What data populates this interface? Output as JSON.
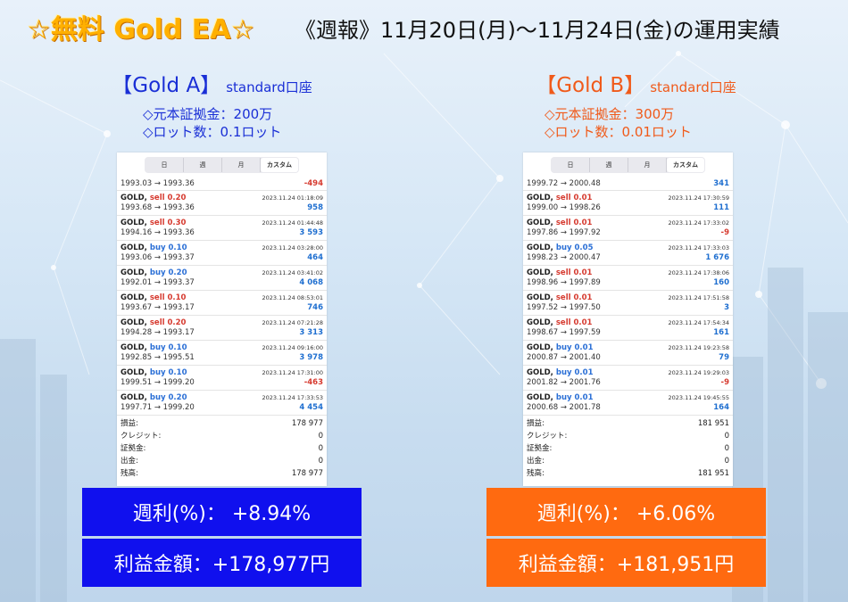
{
  "header": {
    "brand": "☆無料 Gold EA☆",
    "report": "《週報》11月20日(月)〜11月24日(金)の運用実績"
  },
  "tabs": [
    "日",
    "週",
    "月",
    "カスタム"
  ],
  "active_tab": "カスタム",
  "colors": {
    "blue": "#1010ee",
    "orange": "#ff6a10",
    "profit_text": "#1f6fd0",
    "loss_text": "#d63a2f"
  },
  "accounts": [
    {
      "name": "【Gold A】",
      "type": "standard口座",
      "deposit": "◇元本証拠金：200万",
      "lot": "◇ロット数：0.1ロット",
      "first_row": {
        "prices": "1993.03 → 1993.36",
        "pl": "-494"
      },
      "trades": [
        {
          "symbol": "GOLD,",
          "side": "sell 0.20",
          "dir": "sell",
          "datetime": "2023.11.24 01:18:09",
          "prices": "1993.68 → 1993.36",
          "pl": "958"
        },
        {
          "symbol": "GOLD,",
          "side": "sell 0.30",
          "dir": "sell",
          "datetime": "2023.11.24 01:44:48",
          "prices": "1994.16 → 1993.36",
          "pl": "3 593"
        },
        {
          "symbol": "GOLD,",
          "side": "buy 0.10",
          "dir": "buy",
          "datetime": "2023.11.24 03:28:00",
          "prices": "1993.06 → 1993.37",
          "pl": "464"
        },
        {
          "symbol": "GOLD,",
          "side": "buy 0.20",
          "dir": "buy",
          "datetime": "2023.11.24 03:41:02",
          "prices": "1992.01 → 1993.37",
          "pl": "4 068"
        },
        {
          "symbol": "GOLD,",
          "side": "sell 0.10",
          "dir": "sell",
          "datetime": "2023.11.24 08:53:01",
          "prices": "1993.67 → 1993.17",
          "pl": "746"
        },
        {
          "symbol": "GOLD,",
          "side": "sell 0.20",
          "dir": "sell",
          "datetime": "2023.11.24 07:21:28",
          "prices": "1994.28 → 1993.17",
          "pl": "3 313"
        },
        {
          "symbol": "GOLD,",
          "side": "buy 0.10",
          "dir": "buy",
          "datetime": "2023.11.24 09:16:00",
          "prices": "1992.85 → 1995.51",
          "pl": "3 978"
        },
        {
          "symbol": "GOLD,",
          "side": "buy 0.10",
          "dir": "buy",
          "datetime": "2023.11.24 17:31:00",
          "prices": "1999.51 → 1999.20",
          "pl": "-463"
        },
        {
          "symbol": "GOLD,",
          "side": "buy 0.20",
          "dir": "buy",
          "datetime": "2023.11.24 17:33:53",
          "prices": "1997.71 → 1999.20",
          "pl": "4 454"
        }
      ],
      "summary": [
        {
          "label": "損益:",
          "value": "178 977"
        },
        {
          "label": "クレジット:",
          "value": "0"
        },
        {
          "label": "証拠金:",
          "value": "0"
        },
        {
          "label": "出金:",
          "value": "0"
        },
        {
          "label": "残高:",
          "value": "178 977"
        }
      ],
      "weekly_rate": "週利(%)： +8.94%",
      "profit": "利益金額：+178,977円"
    },
    {
      "name": "【Gold B】",
      "type": "standard口座",
      "deposit": "◇元本証拠金：300万",
      "lot": "◇ロット数：0.01ロット",
      "first_row": {
        "prices": "1999.72 → 2000.48",
        "pl": "341"
      },
      "trades": [
        {
          "symbol": "GOLD,",
          "side": "sell 0.01",
          "dir": "sell",
          "datetime": "2023.11.24 17:30:59",
          "prices": "1999.00 → 1998.26",
          "pl": "111"
        },
        {
          "symbol": "GOLD,",
          "side": "sell 0.01",
          "dir": "sell",
          "datetime": "2023.11.24 17:33:02",
          "prices": "1997.86 → 1997.92",
          "pl": "-9"
        },
        {
          "symbol": "GOLD,",
          "side": "buy 0.05",
          "dir": "buy",
          "datetime": "2023.11.24 17:33:03",
          "prices": "1998.23 → 2000.47",
          "pl": "1 676"
        },
        {
          "symbol": "GOLD,",
          "side": "sell 0.01",
          "dir": "sell",
          "datetime": "2023.11.24 17:38:06",
          "prices": "1998.96 → 1997.89",
          "pl": "160"
        },
        {
          "symbol": "GOLD,",
          "side": "sell 0.01",
          "dir": "sell",
          "datetime": "2023.11.24 17:51:58",
          "prices": "1997.52 → 1997.50",
          "pl": "3"
        },
        {
          "symbol": "GOLD,",
          "side": "sell 0.01",
          "dir": "sell",
          "datetime": "2023.11.24 17:54:34",
          "prices": "1998.67 → 1997.59",
          "pl": "161"
        },
        {
          "symbol": "GOLD,",
          "side": "buy 0.01",
          "dir": "buy",
          "datetime": "2023.11.24 19:23:58",
          "prices": "2000.87 → 2001.40",
          "pl": "79"
        },
        {
          "symbol": "GOLD,",
          "side": "buy 0.01",
          "dir": "buy",
          "datetime": "2023.11.24 19:29:03",
          "prices": "2001.82 → 2001.76",
          "pl": "-9"
        },
        {
          "symbol": "GOLD,",
          "side": "buy 0.01",
          "dir": "buy",
          "datetime": "2023.11.24 19:45:55",
          "prices": "2000.68 → 2001.78",
          "pl": "164"
        }
      ],
      "summary": [
        {
          "label": "損益:",
          "value": "181 951"
        },
        {
          "label": "クレジット:",
          "value": "0"
        },
        {
          "label": "証拠金:",
          "value": "0"
        },
        {
          "label": "出金:",
          "value": "0"
        },
        {
          "label": "残高:",
          "value": "181 951"
        }
      ],
      "weekly_rate": "週利(%)： +6.06%",
      "profit": "利益金額：+181,951円"
    }
  ]
}
